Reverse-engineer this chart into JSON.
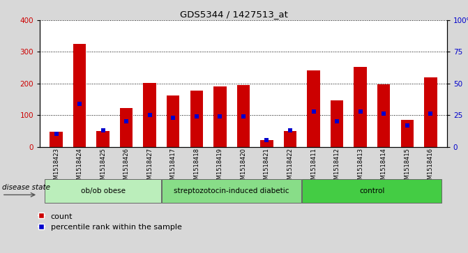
{
  "title": "GDS5344 / 1427513_at",
  "samples": [
    "GSM1518423",
    "GSM1518424",
    "GSM1518425",
    "GSM1518426",
    "GSM1518427",
    "GSM1518417",
    "GSM1518418",
    "GSM1518419",
    "GSM1518420",
    "GSM1518421",
    "GSM1518422",
    "GSM1518411",
    "GSM1518412",
    "GSM1518413",
    "GSM1518414",
    "GSM1518415",
    "GSM1518416"
  ],
  "counts": [
    47,
    325,
    50,
    123,
    202,
    163,
    178,
    190,
    196,
    20,
    50,
    242,
    147,
    252,
    197,
    85,
    220
  ],
  "percentile_ranks": [
    10,
    34,
    13,
    20,
    25,
    23,
    24,
    24,
    24,
    5,
    13,
    28,
    20,
    28,
    26,
    17,
    26
  ],
  "groups": [
    {
      "label": "ob/ob obese",
      "start": 0,
      "end": 4,
      "color": "#bbeebb"
    },
    {
      "label": "streptozotocin-induced diabetic",
      "start": 5,
      "end": 10,
      "color": "#88dd88"
    },
    {
      "label": "control",
      "start": 11,
      "end": 16,
      "color": "#44cc44"
    }
  ],
  "bar_color": "#cc0000",
  "percentile_color": "#0000cc",
  "ylim_left": [
    0,
    400
  ],
  "ylim_right": [
    0,
    100
  ],
  "yticks_left": [
    0,
    100,
    200,
    300,
    400
  ],
  "yticks_right": [
    0,
    25,
    50,
    75,
    100
  ],
  "bg_color": "#d8d8d8",
  "plot_bg": "#ffffff",
  "disease_label": "disease state",
  "legend_count": "count",
  "legend_percentile": "percentile rank within the sample",
  "bar_width": 0.55
}
